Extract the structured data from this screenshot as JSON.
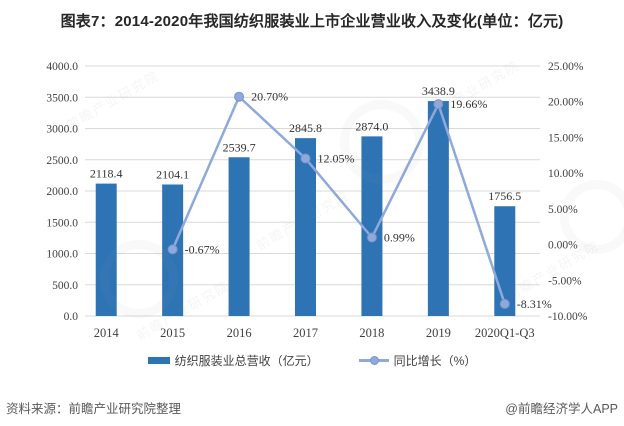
{
  "title": "图表7：2014-2020年我国纺织服装业上市企业营业收入及变化(单位：亿元)",
  "footer": {
    "source": "资料来源：前瞻产业研究院整理",
    "brand": "@前瞻经济学人APP"
  },
  "watermark": "前瞻产业研究院",
  "colors": {
    "bar": "#2E74B5",
    "line": "#8EA9DB",
    "line_edge": "#7A93C8",
    "grid": "#D9D9D9",
    "label": "#404040"
  },
  "chart_data": {
    "type": "bar",
    "title": "图表7：2014-2020年我国纺织服装业上市企业营业收入及变化(单位：亿元)",
    "categories": [
      "2014",
      "2015",
      "2016",
      "2017",
      "2018",
      "2019",
      "2020Q1-Q3"
    ],
    "series": [
      {
        "name": "纺织服装业总营收（亿元）",
        "type": "bar",
        "axis": "left",
        "values": [
          2118.4,
          2104.1,
          2539.7,
          2845.8,
          2874.0,
          3438.9,
          1756.5
        ],
        "labels": [
          "2118.4",
          "2104.1",
          "2539.7",
          "2845.8",
          "2874.0",
          "3438.9",
          "1756.5"
        ]
      },
      {
        "name": "同比增长（%）",
        "type": "line",
        "axis": "right",
        "values": [
          null,
          -0.67,
          20.7,
          12.05,
          0.99,
          19.66,
          -8.31
        ],
        "labels": [
          null,
          "-0.67%",
          "20.70%",
          "12.05%",
          "0.99%",
          "19.66%",
          "-8.31%"
        ]
      }
    ],
    "left_axis": {
      "min": 0,
      "max": 4000,
      "step": 500,
      "ticks": [
        "4000.0",
        "3500.0",
        "3000.0",
        "2500.0",
        "2000.0",
        "1500.0",
        "1000.0",
        "500.0",
        "0.0"
      ]
    },
    "right_axis": {
      "min": -10,
      "max": 25,
      "step": 5,
      "ticks": [
        "25.00%",
        "20.00%",
        "15.00%",
        "10.00%",
        "5.00%",
        "0.00%",
        "-5.00%",
        "-10.00%"
      ]
    },
    "grid": true,
    "legend_position": "bottom",
    "xlabel": "",
    "ylabel": ""
  }
}
